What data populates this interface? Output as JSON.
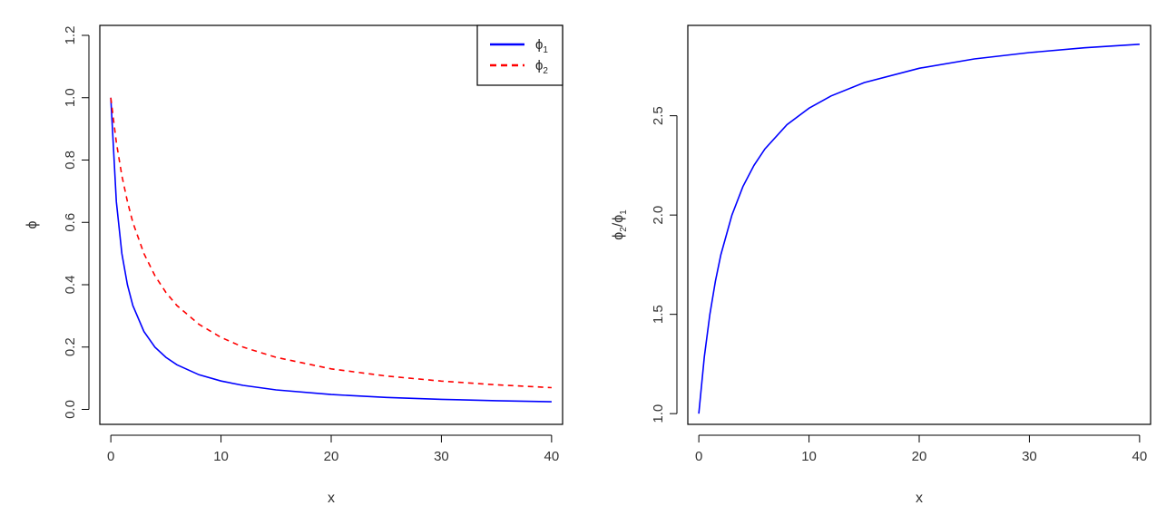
{
  "chart_data": [
    {
      "type": "line",
      "xlabel": "x",
      "ylabel": "ϕ",
      "xlim": [
        0,
        40
      ],
      "ylim": [
        0,
        1.2
      ],
      "xticks": [
        0,
        10,
        20,
        30,
        40
      ],
      "yticks": [
        0.0,
        0.2,
        0.4,
        0.6,
        0.8,
        1.0,
        1.2
      ],
      "ytick_labels": [
        "0.0",
        "0.2",
        "0.4",
        "0.6",
        "0.8",
        "1.0",
        "1.2"
      ],
      "xtick_labels": [
        "0",
        "10",
        "20",
        "30",
        "40"
      ],
      "legend_position": "top-right",
      "grid": false,
      "x": [
        0,
        0.5,
        1,
        1.5,
        2,
        3,
        4,
        5,
        6,
        8,
        10,
        12,
        15,
        20,
        25,
        30,
        35,
        40
      ],
      "series": [
        {
          "name": "ϕ",
          "name_subscript": "1",
          "color": "#0000ff",
          "dash": "solid",
          "values": [
            1.0,
            0.667,
            0.5,
            0.4,
            0.333,
            0.25,
            0.2,
            0.167,
            0.143,
            0.111,
            0.091,
            0.077,
            0.0625,
            0.0476,
            0.0385,
            0.0323,
            0.0278,
            0.0244
          ]
        },
        {
          "name": "ϕ",
          "name_subscript": "2",
          "color": "#ff0000",
          "dash": "dashed",
          "values": [
            1.0,
            0.857,
            0.75,
            0.667,
            0.6,
            0.5,
            0.429,
            0.375,
            0.333,
            0.273,
            0.231,
            0.2,
            0.167,
            0.13,
            0.107,
            0.0909,
            0.0789,
            0.0698
          ]
        }
      ]
    },
    {
      "type": "line",
      "xlabel": "x",
      "ylabel": "ϕ",
      "ylabel_parts": [
        "ϕ",
        "2",
        "/ϕ",
        "1"
      ],
      "xlim": [
        0,
        40
      ],
      "ylim": [
        1.0,
        2.9
      ],
      "xticks": [
        0,
        10,
        20,
        30,
        40
      ],
      "xtick_labels": [
        "0",
        "10",
        "20",
        "30",
        "40"
      ],
      "yticks": [
        1.0,
        1.5,
        2.0,
        2.5
      ],
      "ytick_labels": [
        "1.0",
        "1.5",
        "2.0",
        "2.5"
      ],
      "grid": false,
      "x": [
        0,
        0.5,
        1,
        1.5,
        2,
        3,
        4,
        5,
        6,
        8,
        10,
        12,
        15,
        20,
        25,
        30,
        35,
        40
      ],
      "series": [
        {
          "color": "#0000ff",
          "dash": "solid",
          "values": [
            1.0,
            1.286,
            1.5,
            1.667,
            1.8,
            2.0,
            2.143,
            2.25,
            2.333,
            2.455,
            2.538,
            2.6,
            2.667,
            2.739,
            2.786,
            2.818,
            2.842,
            2.86
          ]
        }
      ]
    }
  ]
}
